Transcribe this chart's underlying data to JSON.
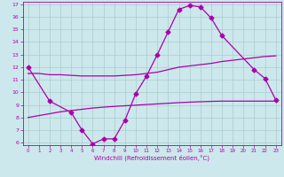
{
  "line_zigzag_x": [
    0,
    2,
    4,
    5,
    6,
    7,
    8,
    9,
    10,
    11,
    12,
    13,
    14,
    15,
    16,
    17,
    18,
    21,
    22,
    23
  ],
  "line_zigzag_y": [
    12,
    9.3,
    8.4,
    7.0,
    5.9,
    6.3,
    6.3,
    7.8,
    9.9,
    11.3,
    13.0,
    14.8,
    16.6,
    16.9,
    16.8,
    15.9,
    14.5,
    11.8,
    11.1,
    9.4
  ],
  "line_upper": [
    11.5,
    11.5,
    11.4,
    11.4,
    11.35,
    11.3,
    11.3,
    11.3,
    11.3,
    11.35,
    11.4,
    11.5,
    11.6,
    11.8,
    12.0,
    12.1,
    12.2,
    12.3,
    12.45,
    12.55,
    12.65,
    12.75,
    12.85,
    12.9
  ],
  "line_lower": [
    8.0,
    8.15,
    8.3,
    8.45,
    8.55,
    8.65,
    8.75,
    8.82,
    8.88,
    8.93,
    8.98,
    9.03,
    9.08,
    9.13,
    9.18,
    9.22,
    9.25,
    9.28,
    9.3,
    9.3,
    9.3,
    9.3,
    9.3,
    9.3
  ],
  "ylim": [
    6,
    17
  ],
  "xlim": [
    -0.5,
    23.5
  ],
  "yticks": [
    6,
    7,
    8,
    9,
    10,
    11,
    12,
    13,
    14,
    15,
    16,
    17
  ],
  "xticks": [
    0,
    1,
    2,
    3,
    4,
    5,
    6,
    7,
    8,
    9,
    10,
    11,
    12,
    13,
    14,
    15,
    16,
    17,
    18,
    19,
    20,
    21,
    22,
    23
  ],
  "xlabel": "Windchill (Refroidissement éolien,°C)",
  "line_color": "#aa00aa",
  "bg_color": "#cce8ec",
  "grid_color": "#aacccc"
}
